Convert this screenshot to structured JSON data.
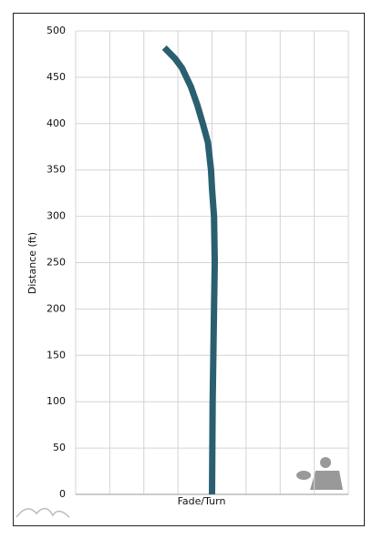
{
  "chart_data": {
    "type": "line",
    "x_label": "Fade/Turn",
    "y_label": "Distance (ft)",
    "series": [
      {
        "color": "#2a5f70",
        "x": [
          0,
          0.02,
          0.06,
          0.08,
          0.06,
          0.0,
          -0.03,
          -0.12,
          -0.27,
          -0.43,
          -0.62,
          -0.88,
          -1.08,
          -1.4
        ],
        "values": [
          0,
          100,
          200,
          250,
          300,
          330,
          350,
          380,
          400,
          420,
          440,
          460,
          470,
          482
        ]
      }
    ],
    "xlim": [
      -4,
      4
    ],
    "ylim": [
      0,
      500
    ],
    "yticks": [
      0,
      50,
      100,
      150,
      200,
      250,
      300,
      350,
      400,
      450,
      500
    ],
    "grid": true
  }
}
